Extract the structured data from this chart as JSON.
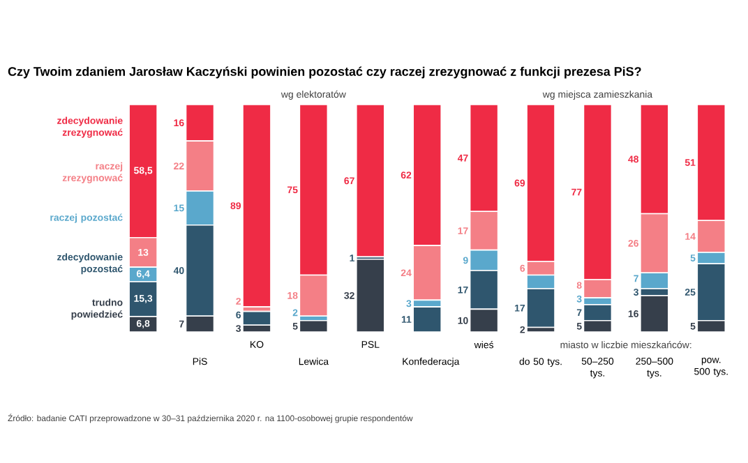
{
  "chart_data": {
    "type": "bar",
    "stacked": true,
    "legend": "left",
    "title": "Czy Twoim zdaniem Jarosław Kaczyński powinien pozostać czy raczej zrezygnować z funkcji prezesa PiS?",
    "categories": [
      null,
      "PiS",
      "KO",
      "Lewica",
      "PSL",
      "Konfederacja",
      "wieś",
      "do 50 tys.",
      "50–250 tys.",
      "250–500 tys.",
      "pow. 500 tys."
    ],
    "ylim": [
      0,
      100
    ],
    "series": [
      {
        "name": "trudno powiedzieć",
        "color": "#363f4b",
        "values": [
          6.8,
          7,
          3,
          5,
          32,
          null,
          10,
          2,
          5,
          16,
          5
        ],
        "value_labels": [
          "6,8",
          "7",
          "3",
          "5",
          "32",
          null,
          "10",
          "2",
          "5",
          "16",
          "5"
        ]
      },
      {
        "name": "zdecydowanie pozostać",
        "color": "#2f566e",
        "values": [
          15.3,
          40,
          6,
          null,
          1,
          11,
          17,
          17,
          7,
          3,
          25
        ],
        "value_labels": [
          "15,3",
          "40",
          "6",
          null,
          "1",
          "11",
          "17",
          "17",
          "7",
          "3",
          "25"
        ]
      },
      {
        "name": "raczej pozostać",
        "color": "#5aa8cc",
        "values": [
          6.4,
          15,
          null,
          2,
          null,
          3,
          9,
          6,
          3,
          7,
          5
        ],
        "value_labels": [
          "6,4",
          "15",
          null,
          "2",
          null,
          "3",
          "9",
          null,
          "3",
          "7",
          "5"
        ]
      },
      {
        "name": "raczej zrezygnować",
        "color": "#f47f86",
        "values": [
          13,
          22,
          2,
          18,
          null,
          24,
          17,
          6,
          8,
          26,
          14
        ],
        "value_labels": [
          "13",
          "22",
          "2",
          "18",
          null,
          "24",
          "17",
          "6",
          "8",
          "26",
          "14"
        ]
      },
      {
        "name": "zdecydowanie zrezygnować",
        "color": "#ef2b45",
        "values": [
          58.5,
          16,
          89,
          75,
          67,
          62,
          47,
          69,
          77,
          48,
          51
        ],
        "value_labels": [
          "58,5",
          "16",
          "89",
          "75",
          "67",
          "62",
          "47",
          "69",
          "77",
          "48",
          "51"
        ]
      }
    ],
    "annotations": [
      "wg elektoratów",
      "wg miejsca zamieszkania",
      "miasto w liczbie mieszkańców:",
      "Źródło: badanie CATI przeprowadzone w 30–31 października 2020 r. na 1100-osobowej grupie respondentów"
    ]
  }
}
